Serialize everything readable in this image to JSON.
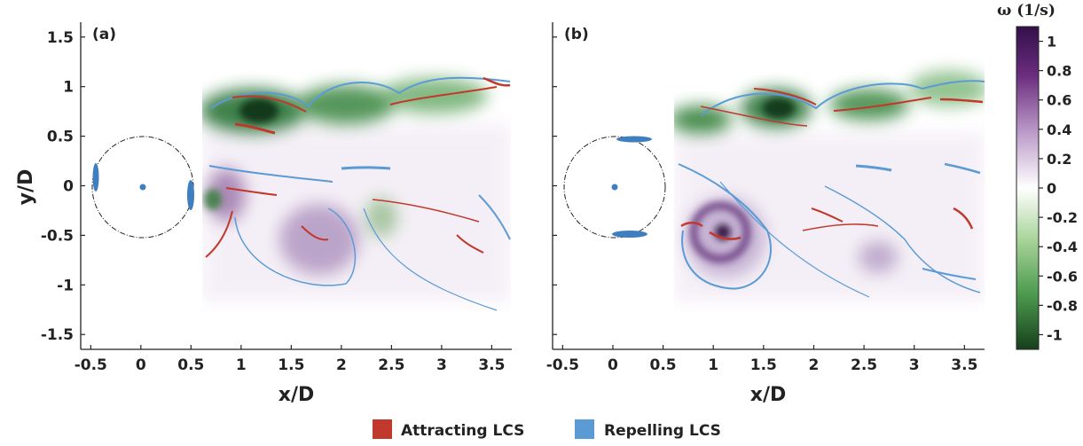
{
  "chart_data": [
    {
      "type": "heatmap",
      "panel_label": "(a)",
      "xlabel": "x/D",
      "ylabel": "y/D",
      "xlim": [
        -0.6,
        3.7
      ],
      "ylim": [
        -1.65,
        1.65
      ],
      "xticks": [
        "-0.5",
        "0",
        "0.5",
        "1",
        "1.5",
        "2",
        "2.5",
        "3",
        "3.5"
      ],
      "yticks": [
        "1.5",
        "1",
        "0.5",
        "0",
        "-0.5",
        "-1",
        "-1.5"
      ],
      "field_x_start": 0.58,
      "vortices": [
        {
          "x": 1.1,
          "y": 0.75,
          "omega": -1.0
        },
        {
          "x": 1.95,
          "y": 0.8,
          "omega": -0.8
        },
        {
          "x": 2.9,
          "y": 0.85,
          "omega": -0.6
        },
        {
          "x": 0.85,
          "y": -0.05,
          "omega": 0.5
        },
        {
          "x": 1.85,
          "y": -0.55,
          "omega": 0.55
        },
        {
          "x": 2.5,
          "y": -0.25,
          "omega": -0.35
        }
      ]
    },
    {
      "type": "heatmap",
      "panel_label": "(b)",
      "xlabel": "x/D",
      "xlim": [
        -0.6,
        3.7
      ],
      "ylim": [
        -1.65,
        1.65
      ],
      "xticks": [
        "-0.5",
        "0",
        "0.5",
        "1",
        "1.5",
        "2",
        "2.5",
        "3",
        "3.5"
      ],
      "field_x_start": 0.6,
      "vortices": [
        {
          "x": 1.55,
          "y": 0.8,
          "omega": -1.0
        },
        {
          "x": 2.5,
          "y": 0.85,
          "omega": -0.8
        },
        {
          "x": 3.3,
          "y": 0.85,
          "omega": -0.6
        },
        {
          "x": 1.05,
          "y": -0.5,
          "omega": 1.0
        },
        {
          "x": 2.55,
          "y": -0.7,
          "omega": 0.45
        }
      ]
    }
  ],
  "colorbar": {
    "title": "ω (1/s)",
    "range": [
      -1.1,
      1.1
    ],
    "ticks": [
      "1",
      "0.8",
      "0.6",
      "0.4",
      "0.2",
      "0",
      "-0.2",
      "-0.4",
      "-0.6",
      "-0.8",
      "-1"
    ],
    "colors": {
      "positive": "#3b0f4e",
      "mid": "#ffffff",
      "negative": "#1b4d22"
    }
  },
  "legend": {
    "items": [
      {
        "label": "Attracting LCS",
        "color": "#c0392b"
      },
      {
        "label": "Repelling LCS",
        "color": "#5b9bd5"
      }
    ]
  }
}
